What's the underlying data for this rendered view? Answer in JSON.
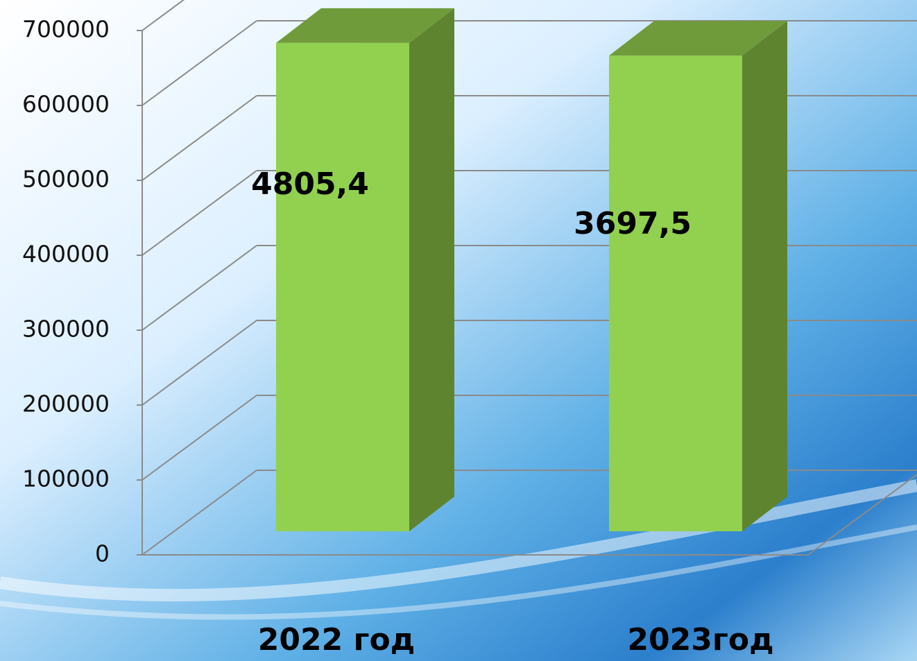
{
  "chart_data": {
    "type": "bar3d",
    "categories": [
      "2022 год",
      "2023год"
    ],
    "values": [
      652000,
      635000
    ],
    "annotations": [
      "4805,4",
      "3697,5"
    ],
    "color": "#92d050",
    "side_color": "#5e8430",
    "top_color": "#6f9b3a",
    "ylim": [
      0,
      700000
    ],
    "yticks": [
      0,
      100000,
      200000,
      300000,
      400000,
      500000,
      600000,
      700000
    ],
    "grid": true
  }
}
